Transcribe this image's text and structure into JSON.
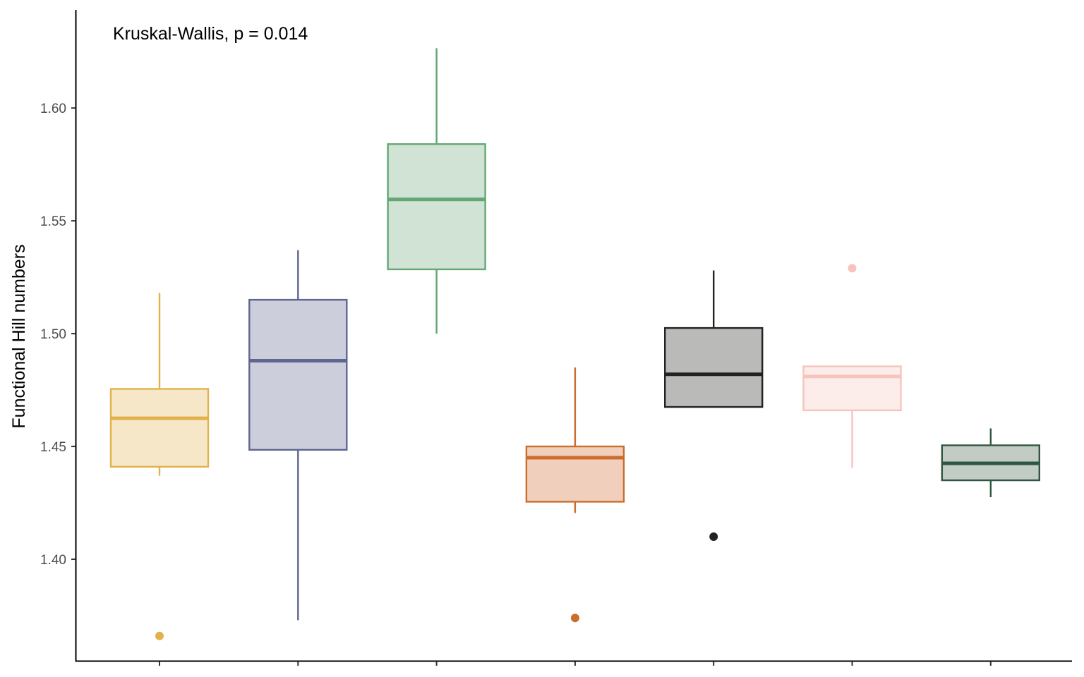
{
  "chart_data": {
    "type": "boxplot",
    "title": "",
    "xlabel": "",
    "ylabel": "Functional Hill numbers",
    "ylim": [
      1.355,
      1.6435
    ],
    "yticks": [
      1.4,
      1.45,
      1.5,
      1.55,
      1.6
    ],
    "ytick_labels": [
      "1.40",
      "1.45",
      "1.50",
      "1.55",
      "1.60"
    ],
    "annotation": "Kruskal-Wallis, p = 0.014",
    "grid": false,
    "legend": "none",
    "groups": [
      {
        "color": "#E2B24A",
        "fill": "#F6E7C8",
        "whisker_low": 1.437,
        "q1": 1.441,
        "median": 1.4625,
        "q3": 1.4755,
        "whisker_high": 1.518,
        "outliers": [
          1.366
        ]
      },
      {
        "color": "#5E6590",
        "fill": "#CDCEDC",
        "whisker_low": 1.373,
        "q1": 1.4485,
        "median": 1.488,
        "q3": 1.515,
        "whisker_high": 1.537,
        "outliers": []
      },
      {
        "color": "#62A775",
        "fill": "#D1E3D4",
        "whisker_low": 1.5,
        "q1": 1.5285,
        "median": 1.5595,
        "q3": 1.584,
        "whisker_high": 1.6265,
        "outliers": []
      },
      {
        "color": "#CC6D2B",
        "fill": "#F0D0BD",
        "whisker_low": 1.4205,
        "q1": 1.4255,
        "median": 1.445,
        "q3": 1.45,
        "whisker_high": 1.485,
        "outliers": [
          1.374
        ]
      },
      {
        "color": "#222222",
        "fill": "#BABAB8",
        "whisker_low": 1.4675,
        "q1": 1.4675,
        "median": 1.482,
        "q3": 1.5025,
        "whisker_high": 1.528,
        "outliers": [
          1.41
        ]
      },
      {
        "color": "#F6C4BD",
        "fill": "#FCEDEA",
        "whisker_low": 1.4405,
        "q1": 1.466,
        "median": 1.481,
        "q3": 1.4855,
        "whisker_high": 1.4855,
        "outliers": [
          1.529
        ]
      },
      {
        "color": "#2F5640",
        "fill": "#C2CCC4",
        "whisker_low": 1.4275,
        "q1": 1.435,
        "median": 1.4425,
        "q3": 1.4505,
        "whisker_high": 1.458,
        "outliers": []
      }
    ]
  }
}
